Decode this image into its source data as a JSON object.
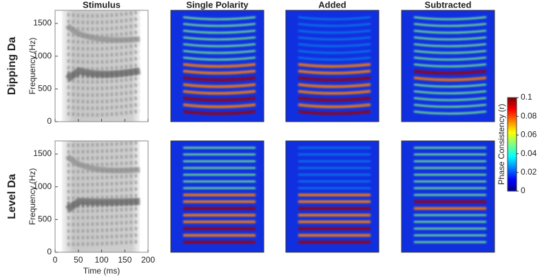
{
  "chart_data": {
    "type": "spectrogram-grid",
    "columns": [
      "Stimulus",
      "Single Polarity",
      "Added",
      "Subtracted"
    ],
    "rows": [
      "Dipping Da",
      "Level Da"
    ],
    "ylabel": "Frequency (Hz)",
    "xlabel": "Time (ms)",
    "ylim": [
      0,
      1700
    ],
    "yticks": [
      0,
      500,
      1000,
      1500
    ],
    "xlim": [
      0,
      200
    ],
    "xticks": [
      0,
      50,
      100,
      150,
      200
    ],
    "colorbar": {
      "label": "Phase Consistency (r)",
      "lim": [
        0,
        0.1
      ],
      "ticks": [
        0,
        0.02,
        0.04,
        0.06,
        0.08,
        0.1
      ]
    }
  }
}
